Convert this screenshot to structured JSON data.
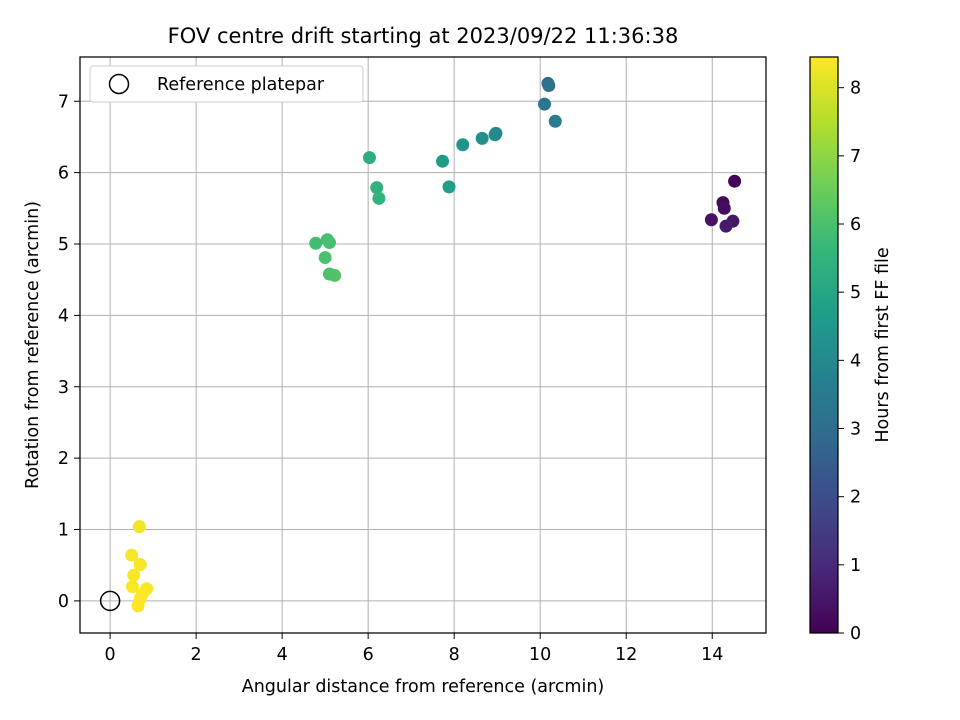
{
  "chart_data": {
    "type": "scatter",
    "title": "FOV centre drift starting at 2023/09/22 11:36:38",
    "xlabel": "Angular distance from reference (arcmin)",
    "ylabel": "Rotation from reference (arcmin)",
    "xlim": [
      -0.7,
      15.25
    ],
    "ylim": [
      -0.45,
      7.62
    ],
    "xticks": [
      0,
      2,
      4,
      6,
      8,
      10,
      12,
      14
    ],
    "yticks": [
      0,
      1,
      2,
      3,
      4,
      5,
      6,
      7
    ],
    "grid": true,
    "legend": {
      "placement": "top-left",
      "entries": [
        "Reference platepar"
      ]
    },
    "reference_point": {
      "name": "Reference platepar",
      "x": 0,
      "y": 0,
      "marker": "open-circle",
      "edge_color": "#000000"
    },
    "colorbar": {
      "label": "Hours from first FF file",
      "range": [
        0,
        8.45
      ],
      "ticks": [
        0,
        1,
        2,
        3,
        4,
        5,
        6,
        7,
        8
      ],
      "colormap": "viridis",
      "stops": [
        "#440154",
        "#482878",
        "#3e4a89",
        "#31688e",
        "#26828e",
        "#1f9e89",
        "#35b779",
        "#6ece58",
        "#b5de2b",
        "#fde725"
      ]
    },
    "points": [
      {
        "x": 14.52,
        "y": 5.88,
        "c": 0.1
      },
      {
        "x": 14.25,
        "y": 5.58,
        "c": 0.2
      },
      {
        "x": 14.28,
        "y": 5.5,
        "c": 0.3
      },
      {
        "x": 13.98,
        "y": 5.34,
        "c": 0.4
      },
      {
        "x": 14.48,
        "y": 5.32,
        "c": 0.5
      },
      {
        "x": 14.32,
        "y": 5.25,
        "c": 0.6
      },
      {
        "x": 10.18,
        "y": 7.25,
        "c": 3.0
      },
      {
        "x": 10.2,
        "y": 7.22,
        "c": 3.1
      },
      {
        "x": 10.1,
        "y": 6.96,
        "c": 3.3
      },
      {
        "x": 10.35,
        "y": 6.72,
        "c": 3.5
      },
      {
        "x": 8.97,
        "y": 6.55,
        "c": 3.9
      },
      {
        "x": 8.95,
        "y": 6.53,
        "c": 4.0
      },
      {
        "x": 8.65,
        "y": 6.48,
        "c": 4.2
      },
      {
        "x": 8.2,
        "y": 6.39,
        "c": 4.4
      },
      {
        "x": 7.73,
        "y": 6.16,
        "c": 4.6
      },
      {
        "x": 7.88,
        "y": 5.8,
        "c": 4.7
      },
      {
        "x": 6.03,
        "y": 6.21,
        "c": 5.3
      },
      {
        "x": 6.2,
        "y": 5.79,
        "c": 5.4
      },
      {
        "x": 6.25,
        "y": 5.64,
        "c": 5.5
      },
      {
        "x": 4.78,
        "y": 5.01,
        "c": 5.85
      },
      {
        "x": 5.05,
        "y": 5.06,
        "c": 5.9
      },
      {
        "x": 5.1,
        "y": 5.02,
        "c": 5.95
      },
      {
        "x": 5.0,
        "y": 4.81,
        "c": 6.0
      },
      {
        "x": 5.1,
        "y": 4.58,
        "c": 6.05
      },
      {
        "x": 5.22,
        "y": 4.56,
        "c": 6.1
      },
      {
        "x": 0.68,
        "y": 1.04,
        "c": 8.3
      },
      {
        "x": 0.5,
        "y": 0.64,
        "c": 8.35
      },
      {
        "x": 0.7,
        "y": 0.51,
        "c": 8.35
      },
      {
        "x": 0.55,
        "y": 0.36,
        "c": 8.4
      },
      {
        "x": 0.52,
        "y": 0.2,
        "c": 8.4
      },
      {
        "x": 0.85,
        "y": 0.17,
        "c": 8.4
      },
      {
        "x": 0.75,
        "y": 0.1,
        "c": 8.42
      },
      {
        "x": 0.7,
        "y": 0.03,
        "c": 8.42
      },
      {
        "x": 0.65,
        "y": -0.07,
        "c": 8.45
      }
    ]
  }
}
